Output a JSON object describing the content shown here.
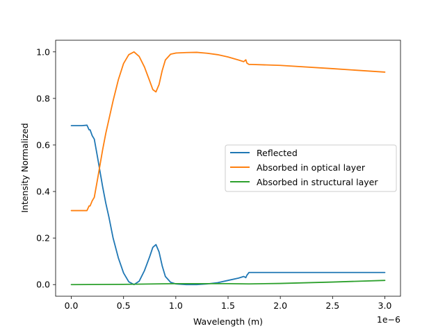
{
  "chart_data": {
    "type": "line",
    "title": "",
    "xlabel": "Wavelength (m)",
    "ylabel": "Intensity Normalized",
    "x_offset_label": "1e−6",
    "xlim": [
      -0.15,
      3.15
    ],
    "ylim": [
      -0.05,
      1.05
    ],
    "x_ticks": [
      0.0,
      0.5,
      1.0,
      1.5,
      2.0,
      2.5,
      3.0
    ],
    "x_tick_labels": [
      "0.0",
      "0.5",
      "1.0",
      "1.5",
      "2.0",
      "2.5",
      "3.0"
    ],
    "y_ticks": [
      0.0,
      0.2,
      0.4,
      0.6,
      0.8,
      1.0
    ],
    "y_tick_labels": [
      "0.0",
      "0.2",
      "0.4",
      "0.6",
      "0.8",
      "1.0"
    ],
    "grid": false,
    "legend_position": "center-right",
    "series": [
      {
        "name": "Reflected",
        "color": "#1f77b4",
        "x": [
          0.0,
          0.1,
          0.15,
          0.17,
          0.18,
          0.2,
          0.22,
          0.25,
          0.3,
          0.33,
          0.36,
          0.4,
          0.45,
          0.5,
          0.55,
          0.6,
          0.65,
          0.7,
          0.75,
          0.78,
          0.81,
          0.84,
          0.87,
          0.9,
          0.95,
          1.0,
          1.1,
          1.2,
          1.3,
          1.4,
          1.5,
          1.6,
          1.65,
          1.67,
          1.68,
          1.7,
          1.72,
          2.0,
          2.5,
          3.0
        ],
        "y": [
          0.683,
          0.683,
          0.685,
          0.665,
          0.665,
          0.64,
          0.625,
          0.55,
          0.42,
          0.35,
          0.29,
          0.2,
          0.115,
          0.05,
          0.012,
          0.0,
          0.015,
          0.06,
          0.12,
          0.16,
          0.172,
          0.14,
          0.08,
          0.035,
          0.01,
          0.003,
          0.0,
          0.0,
          0.003,
          0.008,
          0.018,
          0.028,
          0.035,
          0.03,
          0.04,
          0.052,
          0.052,
          0.052,
          0.052,
          0.052
        ]
      },
      {
        "name": "Absorbed in optical layer",
        "color": "#ff7f0e",
        "x": [
          0.0,
          0.1,
          0.15,
          0.17,
          0.18,
          0.2,
          0.22,
          0.25,
          0.3,
          0.33,
          0.36,
          0.4,
          0.45,
          0.5,
          0.55,
          0.6,
          0.65,
          0.7,
          0.75,
          0.78,
          0.81,
          0.84,
          0.87,
          0.9,
          0.95,
          1.0,
          1.1,
          1.2,
          1.3,
          1.4,
          1.5,
          1.6,
          1.65,
          1.67,
          1.68,
          1.7,
          1.72,
          2.0,
          2.5,
          3.0
        ],
        "y": [
          0.318,
          0.318,
          0.318,
          0.338,
          0.338,
          0.36,
          0.375,
          0.45,
          0.58,
          0.65,
          0.71,
          0.79,
          0.88,
          0.95,
          0.988,
          1.0,
          0.98,
          0.935,
          0.875,
          0.838,
          0.828,
          0.86,
          0.92,
          0.965,
          0.99,
          0.995,
          0.997,
          0.998,
          0.994,
          0.988,
          0.978,
          0.965,
          0.958,
          0.966,
          0.952,
          0.946,
          0.946,
          0.942,
          0.928,
          0.913
        ]
      },
      {
        "name": "Absorbed in structural layer",
        "color": "#2ca02c",
        "x": [
          0.0,
          0.5,
          0.8,
          1.0,
          1.5,
          1.7,
          2.0,
          2.5,
          3.0
        ],
        "y": [
          0.0,
          0.001,
          0.003,
          0.004,
          0.004,
          0.003,
          0.005,
          0.011,
          0.018
        ]
      }
    ]
  }
}
